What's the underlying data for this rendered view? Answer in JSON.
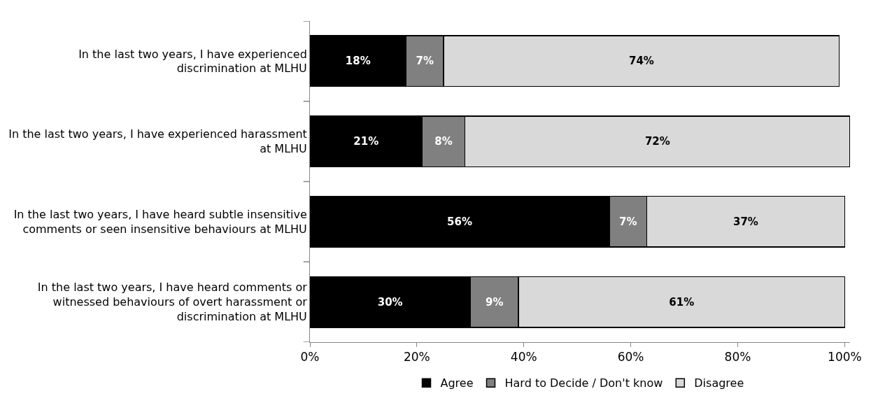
{
  "chart_data": {
    "type": "bar",
    "orientation": "horizontal",
    "stacked": true,
    "legend": "bottom",
    "categories": [
      "In the last two years, I have experienced\ndiscrimination at MLHU",
      "In the last two years, I have experienced harassment\nat MLHU",
      "In the last two years, I have heard subtle insensitive\ncomments or seen insensitive behaviours at MLHU",
      "In the last two years, I have heard comments or\nwitnessed behaviours of overt harassment or\ndiscrimination at MLHU"
    ],
    "series": [
      {
        "name": "Agree",
        "color": "#000000",
        "values": [
          18,
          21,
          56,
          30
        ],
        "value_labels": [
          "18%",
          "21%",
          "56%",
          "30%"
        ]
      },
      {
        "name": "Hard to Decide / Don't know",
        "color": "#808080",
        "values": [
          7,
          8,
          7,
          9
        ],
        "value_labels": [
          "7%",
          "8%",
          "7%",
          "9%"
        ]
      },
      {
        "name": "Disagree",
        "color": "#d9d9d9",
        "values": [
          74,
          72,
          37,
          61
        ],
        "value_labels": [
          "74%",
          "72%",
          "37%",
          "61%"
        ]
      }
    ],
    "xlim": [
      0,
      101
    ],
    "xticks": [
      {
        "value": 0,
        "label": "0%"
      },
      {
        "value": 20,
        "label": "20%"
      },
      {
        "value": 40,
        "label": "40%"
      },
      {
        "value": 60,
        "label": "60%"
      },
      {
        "value": 80,
        "label": "80%"
      },
      {
        "value": 100,
        "label": "100%"
      }
    ]
  }
}
